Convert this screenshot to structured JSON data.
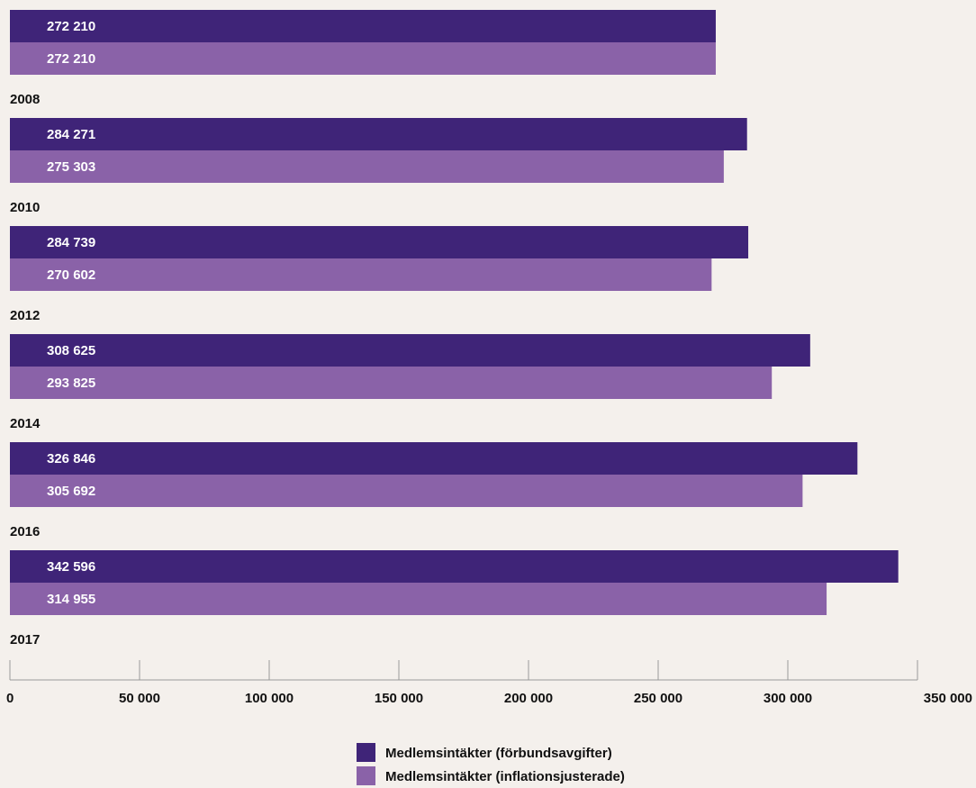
{
  "chart_data": {
    "type": "bar",
    "orientation": "horizontal",
    "categories": [
      "2008",
      "2010",
      "2012",
      "2014",
      "2016",
      "2017"
    ],
    "series": [
      {
        "name": "Medlemsintäkter (förbundsavgifter)",
        "color": "#3f2478",
        "values": [
          272210,
          284271,
          284739,
          308625,
          326846,
          342596
        ],
        "value_labels": [
          "272 210",
          "284 271",
          "284 739",
          "308 625",
          "326 846",
          "342 596"
        ]
      },
      {
        "name": "Medlemsintäkter (inflationsjusterade)",
        "color": "#8a62a8",
        "values": [
          272210,
          275303,
          270602,
          293825,
          305692,
          314955
        ],
        "value_labels": [
          "272 210",
          "275 303",
          "270 602",
          "293 825",
          "305 692",
          "314 955"
        ]
      }
    ],
    "xlim": [
      0,
      350000
    ],
    "x_ticks": [
      0,
      50000,
      100000,
      150000,
      200000,
      250000,
      300000,
      350000
    ],
    "x_tick_labels": [
      "0",
      "50 000",
      "100 000",
      "150 000",
      "200 000",
      "250 000",
      "300 000",
      "350 000"
    ],
    "grid": false,
    "legend_position": "bottom-center"
  }
}
